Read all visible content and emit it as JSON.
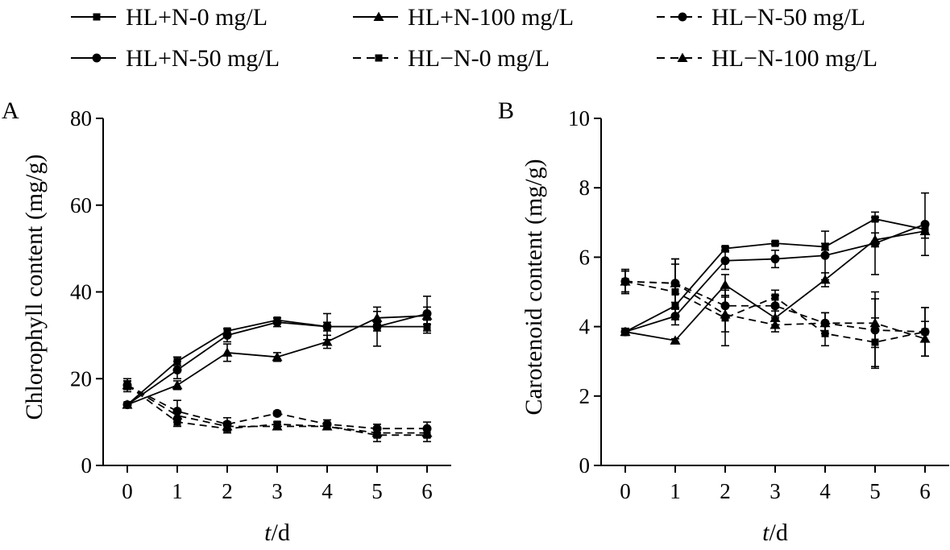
{
  "legend": [
    {
      "name": "HL+N-0 mg/L",
      "dash": "solid",
      "marker": "square"
    },
    {
      "name": "HL+N-100 mg/L",
      "dash": "solid",
      "marker": "triangle"
    },
    {
      "name": "HL−N-50 mg/L",
      "dash": "dashed",
      "marker": "circle"
    },
    {
      "name": "HL+N-50 mg/L",
      "dash": "solid",
      "marker": "circle"
    },
    {
      "name": "HL−N-0 mg/L",
      "dash": "dashed",
      "marker": "square"
    },
    {
      "name": "HL−N-100 mg/L",
      "dash": "dashed",
      "marker": "triangle"
    }
  ],
  "chart_data": [
    {
      "panel_label": "A",
      "type": "line",
      "xlabel_italic": "t",
      "xlabel_rest": "/d",
      "ylabel": "Chlorophyll content (mg/g)",
      "x": [
        0,
        1,
        2,
        3,
        4,
        5,
        6
      ],
      "xticks": [
        "0",
        "1",
        "2",
        "3",
        "4",
        "5",
        "6"
      ],
      "yticks": [
        "0",
        "20",
        "40",
        "60",
        "80"
      ],
      "ylim": [
        0,
        80
      ],
      "grid": false,
      "series": [
        {
          "name": "HL+N-0 mg/L",
          "values": [
            14,
            24,
            31,
            33.5,
            32,
            32,
            32
          ],
          "errors": [
            0.5,
            1,
            0.5,
            0.5,
            1,
            1,
            1.5
          ]
        },
        {
          "name": "HL+N-100 mg/L",
          "values": [
            14,
            18.5,
            26,
            25,
            28.5,
            34,
            34.5
          ],
          "errors": [
            0.5,
            1,
            2,
            1,
            1.5,
            1.5,
            2
          ]
        },
        {
          "name": "HL−N-50 mg/L",
          "values": [
            18.5,
            12.5,
            9.5,
            12,
            9.5,
            8.5,
            8.5
          ],
          "errors": [
            1.5,
            2.5,
            1.5,
            0.5,
            1,
            1,
            1.5
          ]
        },
        {
          "name": "HL+N-50 mg/L",
          "values": [
            14,
            22,
            30,
            33,
            32,
            32,
            35
          ],
          "errors": [
            0.5,
            2,
            1.5,
            1,
            3,
            4.5,
            4
          ]
        },
        {
          "name": "HL−N-0 mg/L",
          "values": [
            18.5,
            10,
            8.5,
            9.5,
            9,
            7,
            7
          ],
          "errors": [
            1,
            1,
            1,
            0.5,
            0.5,
            1.5,
            1.5
          ]
        },
        {
          "name": "HL−N-100 mg/L",
          "values": [
            18.5,
            11.5,
            9,
            9,
            9,
            7.5,
            7.5
          ],
          "errors": [
            1,
            1,
            1,
            0.5,
            0.5,
            1,
            1
          ]
        }
      ]
    },
    {
      "panel_label": "B",
      "type": "line",
      "xlabel_italic": "t",
      "xlabel_rest": "/d",
      "ylabel": "Carotenoid content (mg/g)",
      "x": [
        0,
        1,
        2,
        3,
        4,
        5,
        6
      ],
      "xticks": [
        "0",
        "1",
        "2",
        "3",
        "4",
        "5",
        "6"
      ],
      "yticks": [
        "0",
        "2",
        "4",
        "6",
        "8",
        "10"
      ],
      "ylim": [
        0,
        10
      ],
      "grid": false,
      "series": [
        {
          "name": "HL+N-0 mg/L",
          "values": [
            3.85,
            4.6,
            6.25,
            6.4,
            6.3,
            7.1,
            6.8
          ],
          "errors": [
            0.1,
            0.1,
            0.05,
            0.05,
            0.1,
            0.05,
            0.1
          ]
        },
        {
          "name": "HL+N-100 mg/L",
          "values": [
            3.85,
            3.6,
            5.2,
            4.25,
            5.35,
            6.5,
            6.75
          ],
          "errors": [
            0.1,
            0.05,
            0.3,
            0.2,
            0.2,
            0.2,
            0.2
          ]
        },
        {
          "name": "HL−N-50 mg/L",
          "values": [
            5.3,
            5.25,
            4.6,
            4.6,
            4.1,
            3.9,
            3.85
          ],
          "errors": [
            0.35,
            0.7,
            0.3,
            0.3,
            0.3,
            1.1,
            0.7
          ]
        },
        {
          "name": "HL+N-50 mg/L",
          "values": [
            3.85,
            4.3,
            5.9,
            5.95,
            6.05,
            6.4,
            6.95
          ],
          "errors": [
            0.1,
            0.25,
            0.25,
            0.25,
            0.7,
            0.9,
            0.9
          ]
        },
        {
          "name": "HL−N-0 mg/L",
          "values": [
            5.3,
            5.0,
            4.25,
            4.85,
            3.8,
            3.55,
            3.85
          ],
          "errors": [
            0.3,
            0.8,
            0.8,
            0.2,
            0.35,
            0.7,
            0.7
          ]
        },
        {
          "name": "HL−N-100 mg/L",
          "values": [
            5.3,
            5.25,
            4.35,
            4.05,
            4.1,
            4.1,
            3.65
          ],
          "errors": [
            0.3,
            0.7,
            0.5,
            0.2,
            0.3,
            0.7,
            0.5
          ]
        }
      ]
    }
  ]
}
